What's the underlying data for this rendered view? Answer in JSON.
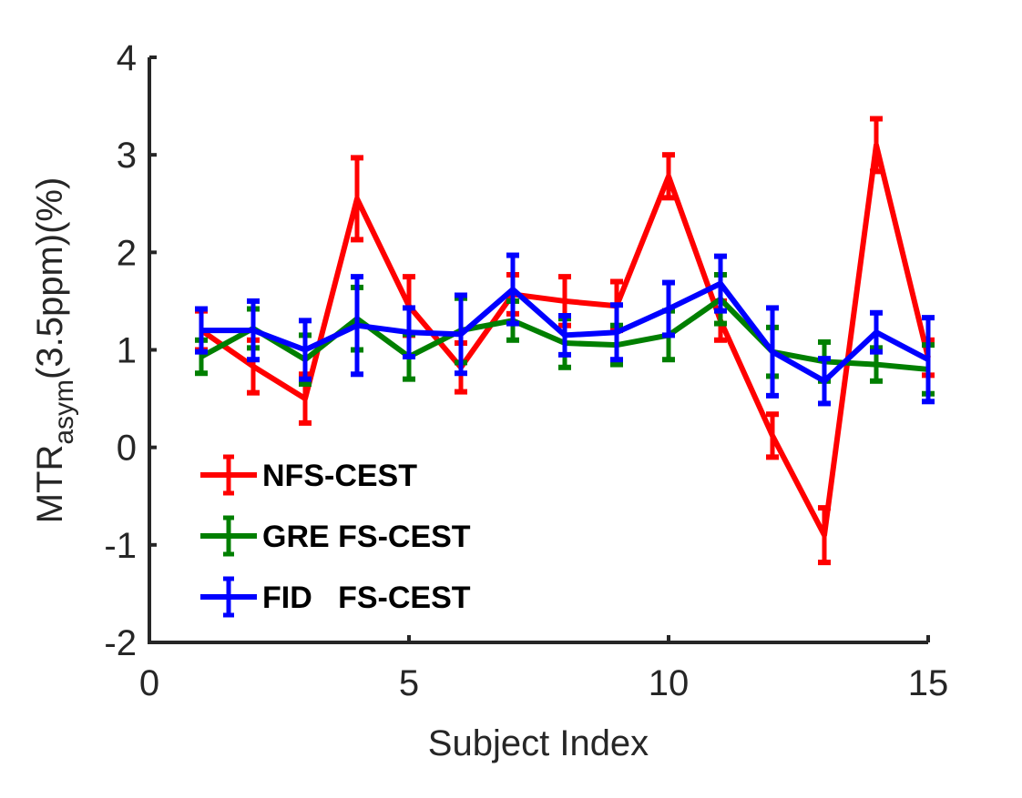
{
  "chart_data": {
    "type": "line",
    "title": "",
    "xlabel": "Subject Index",
    "ylabel_main": "MTR",
    "ylabel_sub": "asym",
    "ylabel_rest": "(3.5ppm)(%)",
    "xlim": [
      0,
      15
    ],
    "ylim": [
      -2,
      4
    ],
    "xticks": [
      0,
      5,
      10,
      15
    ],
    "yticks": [
      -2,
      -1,
      0,
      1,
      2,
      3,
      4
    ],
    "grid": false,
    "legend_position": "bottom-left",
    "x": [
      1,
      2,
      3,
      4,
      5,
      6,
      7,
      8,
      9,
      10,
      11,
      12,
      13,
      14,
      15
    ],
    "series": [
      {
        "name": "NFS-CEST",
        "color": "#ff0000",
        "values": [
          1.2,
          0.83,
          0.5,
          2.55,
          1.45,
          0.82,
          1.57,
          1.5,
          1.45,
          2.78,
          1.3,
          0.12,
          -0.9,
          3.1,
          0.92
        ],
        "errors": [
          0.2,
          0.27,
          0.25,
          0.42,
          0.3,
          0.25,
          0.2,
          0.25,
          0.25,
          0.22,
          0.2,
          0.22,
          0.28,
          0.27,
          0.18
        ]
      },
      {
        "name": "GRE FS-CEST",
        "color": "#007f00",
        "values": [
          0.93,
          1.22,
          0.9,
          1.32,
          0.93,
          1.2,
          1.3,
          1.07,
          1.05,
          1.15,
          1.52,
          0.98,
          0.88,
          0.85,
          0.8
        ],
        "errors": [
          0.17,
          0.2,
          0.25,
          0.32,
          0.23,
          0.33,
          0.2,
          0.25,
          0.2,
          0.25,
          0.25,
          0.25,
          0.2,
          0.17,
          0.25
        ]
      },
      {
        "name": "FID   FS-CEST",
        "color": "#0000ff",
        "values": [
          1.2,
          1.2,
          1.0,
          1.25,
          1.18,
          1.16,
          1.62,
          1.15,
          1.18,
          1.42,
          1.68,
          0.98,
          0.68,
          1.18,
          0.9
        ],
        "errors": [
          0.22,
          0.3,
          0.3,
          0.5,
          0.25,
          0.4,
          0.35,
          0.2,
          0.28,
          0.27,
          0.28,
          0.45,
          0.23,
          0.2,
          0.43
        ]
      }
    ]
  }
}
